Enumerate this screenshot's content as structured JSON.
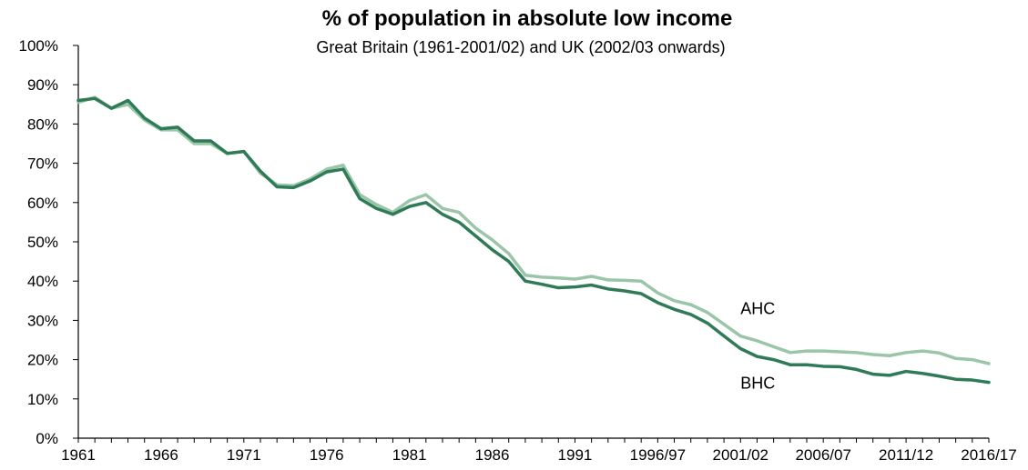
{
  "chart_data": {
    "type": "line",
    "title": "% of population in absolute low income",
    "subtitle": "Great Britain (1961-2001/02) and UK (2002/03 onwards)",
    "xlabel": "",
    "ylabel": "",
    "ylim": [
      0,
      100
    ],
    "yticks": [
      0,
      10,
      20,
      30,
      40,
      50,
      60,
      70,
      80,
      90,
      100
    ],
    "ytick_labels": [
      "0%",
      "10%",
      "20%",
      "30%",
      "40%",
      "50%",
      "60%",
      "70%",
      "80%",
      "90%",
      "100%"
    ],
    "x": [
      "1961",
      "1962",
      "1963",
      "1964",
      "1965",
      "1966",
      "1967",
      "1968",
      "1969",
      "1970",
      "1971",
      "1972",
      "1973",
      "1974",
      "1975",
      "1976",
      "1977",
      "1978",
      "1979",
      "1980",
      "1981",
      "1982",
      "1983",
      "1984",
      "1985",
      "1986",
      "1987",
      "1988",
      "1989",
      "1990",
      "1991",
      "1992",
      "1993",
      "1994",
      "1995",
      "1996/97",
      "1997/98",
      "1998/99",
      "1999/00",
      "2000/01",
      "2001/02",
      "2002/03",
      "2003/04",
      "2004/05",
      "2005/06",
      "2006/07",
      "2007/08",
      "2008/09",
      "2009/10",
      "2010/11",
      "2011/12",
      "2012/13",
      "2013/14",
      "2014/15",
      "2015/16",
      "2016/17"
    ],
    "xtick_labels": [
      "1961",
      "1966",
      "1971",
      "1976",
      "1981",
      "1986",
      "1991",
      "1996/97",
      "2001/02",
      "2006/07",
      "2011/12",
      "2016/17"
    ],
    "grid": false,
    "series": [
      {
        "name": "AHC",
        "color": "#9ac5a8",
        "values": [
          85.5,
          86.8,
          84.0,
          85.0,
          81.0,
          78.5,
          78.5,
          75.0,
          75.0,
          72.5,
          73.0,
          67.5,
          64.5,
          64.3,
          66.0,
          68.5,
          69.5,
          62.0,
          59.5,
          57.5,
          60.5,
          62.0,
          58.5,
          57.5,
          53.5,
          50.5,
          47.0,
          41.5,
          41.0,
          40.8,
          40.5,
          41.2,
          40.3,
          40.2,
          40.0,
          37.0,
          35.0,
          34.0,
          32.0,
          29.0,
          26.0,
          24.8,
          23.3,
          21.8,
          22.2,
          22.2,
          22.0,
          21.8,
          21.3,
          21.0,
          21.8,
          22.2,
          21.7,
          20.3,
          20.0,
          19.0
        ]
      },
      {
        "name": "BHC",
        "color": "#2f7b57",
        "values": [
          86.0,
          86.5,
          84.0,
          86.0,
          81.5,
          78.8,
          79.2,
          75.7,
          75.7,
          72.5,
          73.0,
          68.0,
          64.0,
          63.8,
          65.5,
          67.8,
          68.5,
          61.0,
          58.5,
          57.0,
          59.0,
          60.0,
          57.0,
          55.0,
          51.5,
          48.0,
          45.0,
          40.0,
          39.2,
          38.3,
          38.5,
          39.0,
          38.0,
          37.5,
          36.8,
          34.5,
          32.8,
          31.5,
          29.3,
          26.0,
          22.8,
          20.8,
          20.0,
          18.7,
          18.7,
          18.3,
          18.2,
          17.5,
          16.3,
          16.0,
          17.0,
          16.5,
          15.8,
          15.0,
          14.8,
          14.2
        ]
      }
    ],
    "annotations": [
      {
        "text": "AHC",
        "series": "AHC",
        "x": "2001/02",
        "y": 33
      },
      {
        "text": "BHC",
        "series": "BHC",
        "x": "2001/02",
        "y": 14
      }
    ]
  }
}
